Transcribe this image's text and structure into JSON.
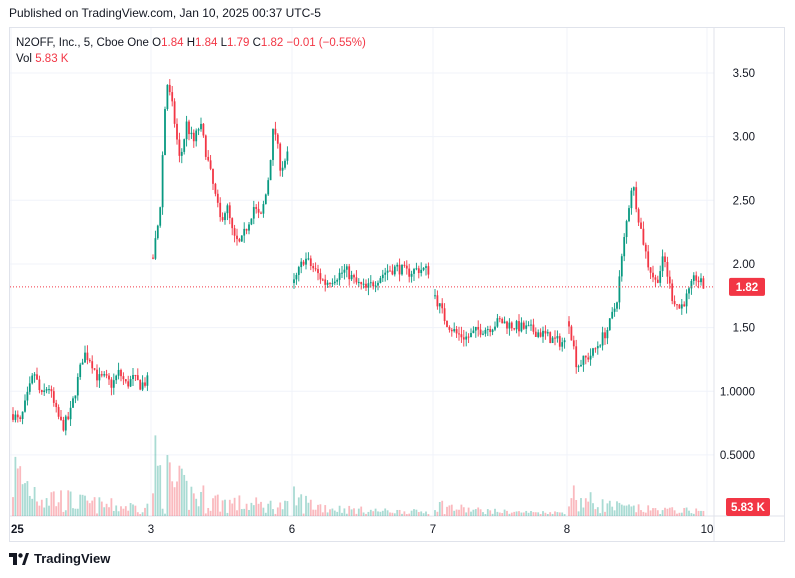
{
  "header": {
    "published": "Published on TradingView.com, Jan 10, 2025 00:37 UTC-5"
  },
  "legend": {
    "symbol": "N2OFF, Inc., 5, Cboe One",
    "o_label": "O",
    "o_value": "1.84",
    "h_label": "H",
    "h_value": "1.84",
    "l_label": "L",
    "l_value": "1.79",
    "c_label": "C",
    "c_value": "1.82",
    "change": "−0.01 (−0.55%)",
    "vol_label": "Vol",
    "vol_value": "5.83 K"
  },
  "badges": {
    "price": "1.82",
    "volume": "5.83 K"
  },
  "footer": {
    "brand": "TradingView"
  },
  "colors": {
    "up": "#089981",
    "down": "#f23645",
    "grid": "#f0f3fa",
    "price_line": "#f23645"
  },
  "chart_data": {
    "type": "candlestick",
    "ylim": [
      0.25,
      3.75
    ],
    "yticks": [
      {
        "value": 3.5,
        "label": "3.50"
      },
      {
        "value": 3.0,
        "label": "3.00"
      },
      {
        "value": 2.5,
        "label": "2.50"
      },
      {
        "value": 2.0,
        "label": "2.00"
      },
      {
        "value": 1.5,
        "label": "1.50"
      },
      {
        "value": 1.0,
        "label": "1.0000"
      },
      {
        "value": 0.5,
        "label": "0.5000"
      }
    ],
    "xticks": [
      "25",
      "3",
      "6",
      "7",
      "8",
      "10"
    ],
    "last_price": 1.82,
    "last_volume": "5.83 K",
    "segments": [
      {
        "session": "25",
        "path": [
          0.82,
          0.75,
          0.95,
          1.15,
          0.95,
          1.05,
          0.85,
          0.72,
          0.8,
          1.05,
          1.3,
          1.25,
          1.1,
          1.1,
          1.05,
          1.15,
          1.05,
          1.1,
          1.05,
          1.08
        ],
        "vol_peak": 0.85
      },
      {
        "session": "3",
        "path": [
          2.05,
          2.4,
          3.45,
          3.2,
          2.8,
          3.1,
          2.95,
          3.1,
          2.85,
          2.6,
          2.35,
          2.45,
          2.2,
          2.15,
          2.3,
          2.45,
          2.35,
          2.6,
          3.1,
          2.75,
          2.85
        ],
        "vol_peak": 0.95
      },
      {
        "session": "6",
        "path": [
          1.85,
          2.05,
          1.95,
          1.85,
          1.9,
          1.95,
          1.85,
          1.8,
          1.88,
          1.95,
          1.97,
          1.93,
          1.96,
          1.95
        ],
        "vol_peak": 0.3
      },
      {
        "session": "7",
        "path": [
          1.75,
          1.55,
          1.45,
          1.42,
          1.48,
          1.5,
          1.55,
          1.52,
          1.5,
          1.48,
          1.45,
          1.4,
          1.38
        ],
        "vol_peak": 0.2
      },
      {
        "session": "8",
        "path": [
          1.55,
          1.2,
          1.25,
          1.3,
          1.4,
          1.5,
          1.7,
          2.2,
          2.65,
          2.3,
          2.0,
          1.85,
          2.05,
          1.75,
          1.65,
          1.75,
          1.9,
          1.82
        ],
        "vol_peak": 0.4
      }
    ]
  }
}
